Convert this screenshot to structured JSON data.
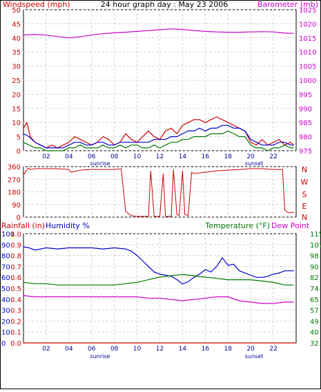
{
  "colors": {
    "red": "#cc0000",
    "blue": "#0000cc",
    "green": "#007700",
    "magenta": "#cc00cc",
    "grid": "#d0d0d0",
    "axis": "#000000"
  },
  "top": {
    "left_label": "Windspeed (mph)",
    "center_title": "24 hour graph day : May 23 2006",
    "right_label": "Barometer (mb)",
    "x_labels": [
      "02",
      "04",
      "06",
      "08",
      "10",
      "12",
      "14",
      "16",
      "18",
      "20",
      "22"
    ],
    "sunrise_label": "sunrise",
    "sunset_label": "sunset"
  },
  "middle": {
    "right_letters": [
      "N",
      "W",
      "S",
      "E",
      "N"
    ]
  },
  "bottom": {
    "rain_label": "Rainfall (in)",
    "hum_label": "Humidity %",
    "temp_label": "Temperature (°F)",
    "dew_label": "Dew Point",
    "sunrise_label": "sunrise",
    "sunset_label": "sunset"
  },
  "chart_data": [
    {
      "type": "line",
      "title": "24 hour graph day : May 23 2006",
      "ylabel": "Windspeed (mph)",
      "y2label": "Barometer (mb)",
      "x_range": [
        0,
        24
      ],
      "x_ticks": [
        2,
        4,
        6,
        8,
        10,
        12,
        14,
        16,
        18,
        20,
        22
      ],
      "x_tick_labels": [
        "02",
        "04",
        "06",
        "08",
        "10",
        "12",
        "14",
        "16",
        "18",
        "20",
        "22"
      ],
      "ylim": [
        0,
        50
      ],
      "y_ticks": [
        0,
        5,
        10,
        15,
        20,
        25,
        30,
        35,
        40,
        45,
        50
      ],
      "y2lim": [
        975,
        1025
      ],
      "y2_ticks": [
        975,
        980,
        985,
        990,
        995,
        1000,
        1005,
        1010,
        1015,
        1020,
        1025
      ],
      "grid": true,
      "series": [
        {
          "name": "Gust",
          "axis": "left",
          "color": "#cc0000",
          "x": [
            0,
            0.3,
            0.6,
            1,
            1.5,
            2,
            2.5,
            3,
            3.5,
            4,
            4.5,
            5,
            5.5,
            6,
            6.5,
            7,
            7.5,
            8,
            8.5,
            9,
            9.5,
            10,
            10.5,
            11,
            11.5,
            12,
            12.5,
            13,
            13.5,
            14,
            14.5,
            15,
            15.5,
            16,
            16.5,
            17,
            17.5,
            18,
            18.5,
            19,
            19.5,
            20,
            20.5,
            21,
            21.5,
            22,
            22.5,
            23,
            23.5,
            23.8
          ],
          "y": [
            8,
            10,
            5,
            3,
            2,
            1,
            2,
            1,
            2,
            3,
            5,
            4,
            3,
            2,
            3,
            5,
            4,
            2,
            3,
            6,
            4,
            3,
            5,
            7,
            5,
            4,
            7,
            8,
            6,
            9,
            10,
            11,
            11,
            10,
            11,
            12,
            11,
            10,
            9,
            8,
            7,
            3,
            2,
            4,
            2,
            3,
            4,
            2,
            3,
            2
          ]
        },
        {
          "name": "Wind",
          "axis": "left",
          "color": "#0000cc",
          "x": [
            0,
            0.5,
            1,
            1.5,
            2,
            2.5,
            3,
            3.5,
            4,
            4.5,
            5,
            5.5,
            6,
            6.5,
            7,
            7.5,
            8,
            8.5,
            9,
            9.5,
            10,
            10.5,
            11,
            11.5,
            12,
            12.5,
            13,
            13.5,
            14,
            14.5,
            15,
            15.5,
            16,
            16.5,
            17,
            17.5,
            18,
            18.5,
            19,
            19.5,
            20,
            20.5,
            21,
            21.5,
            22,
            22.5,
            23,
            23.5,
            23.8
          ],
          "y": [
            6,
            5,
            3,
            2,
            1,
            1,
            1,
            1,
            2,
            3,
            3,
            2,
            2,
            3,
            3,
            2,
            2,
            3,
            3,
            3,
            3,
            3,
            3,
            4,
            4,
            4,
            5,
            5,
            6,
            7,
            7,
            8,
            7,
            8,
            8,
            9,
            9,
            8,
            8,
            7,
            4,
            3,
            2,
            2,
            2,
            3,
            3,
            2,
            2
          ]
        },
        {
          "name": "Avg",
          "axis": "left",
          "color": "#007700",
          "x": [
            0,
            0.5,
            1,
            1.5,
            2,
            2.5,
            3,
            3.5,
            4,
            4.5,
            5,
            5.5,
            6,
            6.5,
            7,
            7.5,
            8,
            8.5,
            9,
            9.5,
            10,
            10.5,
            11,
            11.5,
            12,
            12.5,
            13,
            13.5,
            14,
            14.5,
            15,
            15.5,
            16,
            16.5,
            17,
            17.5,
            18,
            18.5,
            19,
            19.5,
            20,
            20.5,
            21,
            21.5,
            22,
            22.5,
            23,
            23.5,
            23.8
          ],
          "y": [
            3,
            2,
            1,
            1,
            0,
            0,
            0,
            0,
            1,
            1,
            2,
            1,
            1,
            1,
            2,
            1,
            1,
            2,
            1,
            2,
            2,
            1,
            1,
            2,
            1,
            2,
            3,
            3,
            4,
            4,
            5,
            5,
            5,
            6,
            6,
            6,
            7,
            6,
            5,
            5,
            2,
            1,
            1,
            0,
            1,
            1,
            2,
            1,
            1
          ]
        },
        {
          "name": "Barometer",
          "axis": "right",
          "color": "#cc00cc",
          "x": [
            0,
            1,
            2,
            3,
            4,
            5,
            6,
            7,
            8,
            9,
            10,
            11,
            12,
            13,
            14,
            15,
            16,
            17,
            18,
            19,
            20,
            21,
            22,
            23,
            23.8
          ],
          "y": [
            1016,
            1016.2,
            1016,
            1015.5,
            1015,
            1015.4,
            1016,
            1016.5,
            1016.8,
            1017,
            1017.3,
            1017.6,
            1017.9,
            1018.2,
            1018,
            1017.6,
            1017.3,
            1017.1,
            1017,
            1017,
            1017.1,
            1017.2,
            1017.1,
            1016.7,
            1016.6
          ]
        }
      ]
    },
    {
      "type": "line",
      "ylabel": "Wind direction",
      "x_range": [
        0,
        24
      ],
      "ylim": [
        0,
        360
      ],
      "y_ticks": [
        0,
        90,
        180,
        270,
        360
      ],
      "grid": true,
      "series": [
        {
          "name": "Direction",
          "color": "#cc0000",
          "x": [
            0,
            0.4,
            0.6,
            1,
            2,
            3,
            4,
            4.2,
            5,
            6,
            7,
            8,
            8.6,
            9,
            9.5,
            10,
            10.5,
            11,
            11.2,
            11.5,
            12,
            12.3,
            12.5,
            13,
            13.2,
            13.5,
            13.7,
            14,
            14.2,
            14.5,
            14.8,
            15,
            16,
            17,
            18,
            19,
            20,
            21,
            22,
            22.8,
            23,
            23.3,
            23.8
          ],
          "x_note": "",
          "y": [
            300,
            350,
            340,
            345,
            345,
            345,
            340,
            320,
            335,
            340,
            340,
            340,
            345,
            40,
            10,
            5,
            5,
            5,
            330,
            5,
            5,
            310,
            5,
            5,
            340,
            20,
            10,
            330,
            20,
            10,
            320,
            310,
            320,
            330,
            335,
            340,
            345,
            345,
            340,
            340,
            50,
            30,
            35
          ]
        }
      ]
    },
    {
      "type": "line",
      "x_range": [
        0,
        24
      ],
      "x_ticks": [
        2,
        4,
        6,
        8,
        10,
        12,
        14,
        16,
        18,
        20,
        22
      ],
      "x_tick_labels": [
        "02",
        "04",
        "06",
        "08",
        "10",
        "12",
        "14",
        "16",
        "18",
        "20",
        "22"
      ],
      "ylabel": "Rainfall (in)",
      "y_rain_ticks": [
        "0.0",
        "0.1",
        "0.2",
        "0.3",
        "0.4",
        "0.5",
        "0.6",
        "0.7",
        "0.8",
        "0.9",
        "1.0",
        "1.1",
        "1"
      ],
      "humidity_ticks": [
        0,
        10,
        20,
        30,
        40,
        50,
        60,
        70,
        80,
        90,
        100
      ],
      "y2label": "Temperature (°F)",
      "y2_ticks": [
        32,
        40,
        49,
        57,
        65,
        74,
        82,
        90,
        98,
        107,
        115
      ],
      "y2lim": [
        32,
        115
      ],
      "grid": true,
      "series": [
        {
          "name": "Rainfall",
          "axis": "rain",
          "color": "#cc0000",
          "x": [
            0,
            24
          ],
          "y": [
            0,
            0
          ]
        },
        {
          "name": "Humidity",
          "axis": "humidity",
          "color": "#0000cc",
          "x": [
            0,
            0.5,
            1,
            2,
            3,
            4,
            5,
            6,
            7,
            8,
            9,
            9.5,
            10,
            10.5,
            11,
            11.5,
            12,
            12.5,
            13,
            13.5,
            14,
            14.5,
            15,
            15.5,
            16,
            16.5,
            17,
            17.5,
            18,
            18.5,
            19,
            19.5,
            20,
            20.5,
            21,
            21.5,
            22,
            22.5,
            23,
            23.8
          ],
          "y": [
            88,
            87,
            85,
            87,
            86,
            87,
            87,
            87,
            86,
            87,
            86,
            84,
            80,
            75,
            70,
            65,
            63,
            62,
            61,
            58,
            54,
            56,
            60,
            63,
            67,
            65,
            70,
            78,
            71,
            72,
            66,
            64,
            62,
            60,
            60,
            61,
            63,
            64,
            66,
            66
          ]
        },
        {
          "name": "Temperature",
          "axis": "temp",
          "color": "#007700",
          "x": [
            0,
            1,
            2,
            3,
            4,
            5,
            6,
            7,
            8,
            9,
            10,
            11,
            12,
            13,
            14,
            15,
            16,
            17,
            18,
            19,
            20,
            21,
            22,
            23,
            23.8
          ],
          "y": [
            78,
            77,
            77,
            76,
            76,
            76,
            76,
            76,
            76,
            77,
            78,
            80,
            82,
            83,
            84,
            83,
            82,
            81,
            80,
            80,
            80,
            79,
            78,
            76,
            76
          ]
        },
        {
          "name": "Dew Point",
          "axis": "temp",
          "color": "#cc00cc",
          "x": [
            0,
            1,
            2,
            3,
            4,
            5,
            6,
            7,
            8,
            9,
            10,
            11,
            12,
            13,
            14,
            15,
            16,
            17,
            18,
            19,
            20,
            21,
            22,
            23,
            23.8
          ],
          "y": [
            68,
            67,
            67,
            67,
            67,
            67,
            67,
            67,
            67,
            67,
            67,
            66,
            66,
            65,
            64,
            65,
            66,
            67,
            67,
            64,
            63,
            62,
            62,
            63,
            63
          ]
        }
      ]
    }
  ]
}
